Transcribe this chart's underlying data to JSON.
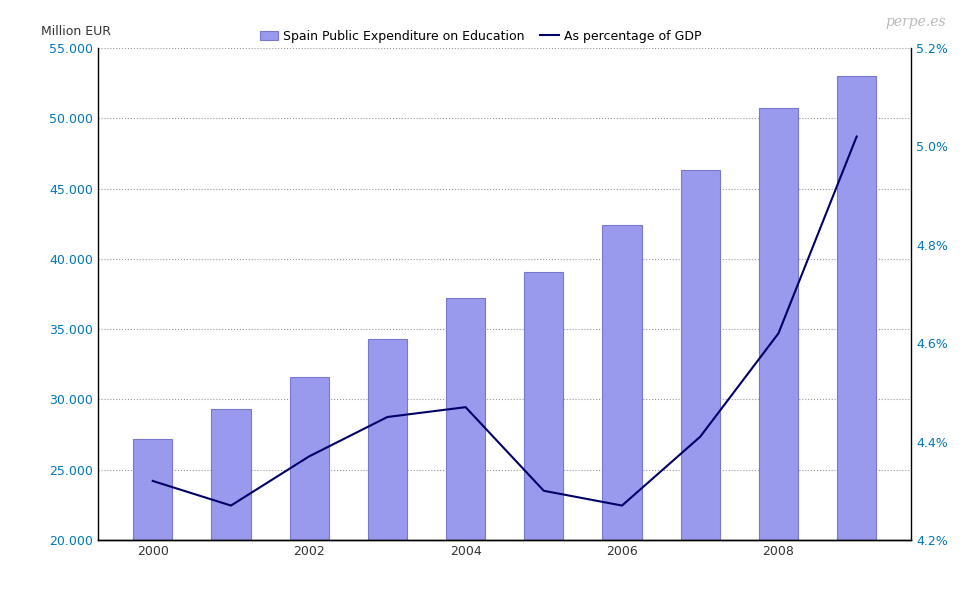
{
  "years": [
    2000,
    2001,
    2002,
    2003,
    2004,
    2005,
    2006,
    2007,
    2008,
    2009
  ],
  "expenditure": [
    27200,
    29300,
    31600,
    34300,
    37200,
    39100,
    42400,
    46300,
    50700,
    53000
  ],
  "gdp_pct": [
    4.32,
    4.27,
    4.37,
    4.45,
    4.47,
    4.3,
    4.27,
    4.41,
    4.62,
    5.02
  ],
  "bar_color": "#9999EE",
  "bar_edge_color": "#7777CC",
  "line_color": "#000066",
  "ylim_left": [
    20000,
    55000
  ],
  "ylim_right": [
    4.2,
    5.2
  ],
  "yticks_left": [
    20000,
    25000,
    30000,
    35000,
    40000,
    45000,
    50000,
    55000
  ],
  "yticks_right": [
    4.2,
    4.4,
    4.6,
    4.8,
    5.0,
    5.2
  ],
  "xticks": [
    2000,
    2002,
    2004,
    2006,
    2008
  ],
  "ylabel_left": "Million EUR",
  "title_bar": "Spain Public Expenditure on Education",
  "title_line": "As percentage of GDP",
  "watermark": "perpe.es",
  "background_color": "#FFFFFF",
  "grid_color": "#999999",
  "right_tick_color": "#0077BB",
  "left_tick_color": "#0077BB",
  "bar_width": 0.5
}
